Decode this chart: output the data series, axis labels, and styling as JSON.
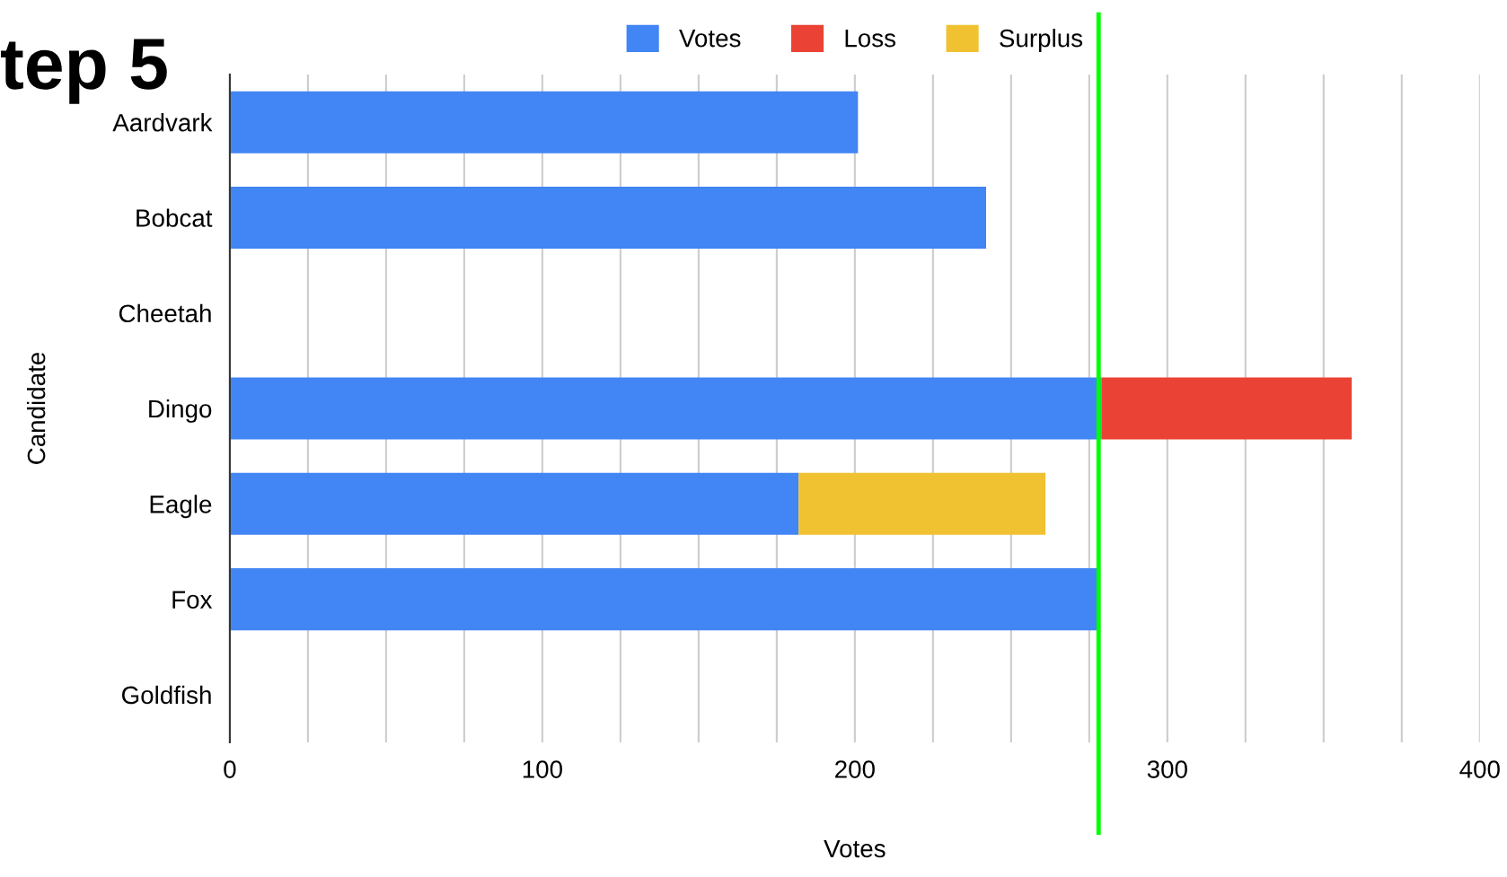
{
  "chart_data": {
    "type": "bar",
    "title": "tep 5",
    "orientation": "horizontal",
    "stacked": true,
    "categories": [
      "Aardvark",
      "Bobcat",
      "Cheetah",
      "Dingo",
      "Eagle",
      "Fox",
      "Goldfish"
    ],
    "series": [
      {
        "name": "Votes",
        "color": "#4285f4",
        "values": [
          201,
          242,
          null,
          279,
          182,
          278,
          null
        ]
      },
      {
        "name": "Loss",
        "color": "#ea4335",
        "values": [
          null,
          null,
          null,
          80,
          null,
          null,
          null
        ]
      },
      {
        "name": "Surplus",
        "color": "#f0c232",
        "values": [
          null,
          null,
          null,
          null,
          79,
          null,
          null
        ]
      }
    ],
    "xlabel": "Votes",
    "ylabel": "Candidate",
    "xlim": [
      0,
      400
    ],
    "xticks": [
      0,
      {
        "value": 25,
        "label": null
      },
      {
        "value": 50,
        "label": null
      },
      {
        "value": 75,
        "label": null
      },
      100,
      {
        "value": 125,
        "label": null
      },
      {
        "value": 150,
        "label": null
      },
      {
        "value": 175,
        "label": null
      },
      200,
      {
        "value": 225,
        "label": null
      },
      {
        "value": 250,
        "label": null
      },
      {
        "value": 275,
        "label": null
      },
      300,
      {
        "value": 325,
        "label": null
      },
      {
        "value": 350,
        "label": null
      },
      {
        "value": 375,
        "label": null
      },
      400
    ],
    "grid": "x",
    "legend": "top",
    "ref_lines": [
      {
        "axis": "x",
        "value": 278,
        "label": null,
        "color": "#00ff00"
      }
    ]
  }
}
